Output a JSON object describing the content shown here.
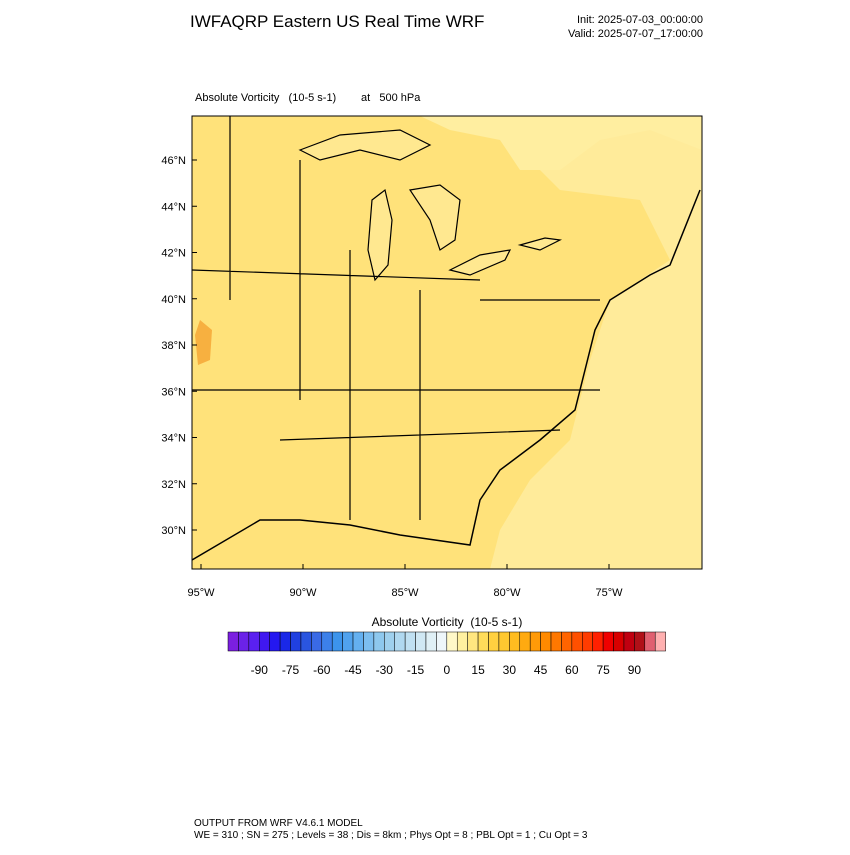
{
  "header": {
    "title": "IWFAQRP Eastern US Real Time WRF",
    "init": "Init: 2025-07-03_00:00:00",
    "valid": "Valid: 2025-07-07_17:00:00"
  },
  "map": {
    "field": "Absolute Vorticity   (10-5 s-1)",
    "level": "at   500 hPa",
    "lat_labels": [
      "46°N",
      "44°N",
      "42°N",
      "40°N",
      "38°N",
      "36°N",
      "34°N",
      "32°N",
      "30°N"
    ],
    "lon_labels": [
      "95°W",
      "90°W",
      "85°W",
      "80°W",
      "75°W"
    ]
  },
  "colorbar": {
    "title": "Absolute Vorticity  (10-5 s-1)",
    "labels": [
      -90,
      -75,
      -60,
      -45,
      -30,
      -15,
      0,
      15,
      30,
      45,
      60,
      75,
      90
    ],
    "colors": [
      "#7b1fe0",
      "#6b22e8",
      "#5a20f0",
      "#4018f0",
      "#2418f0",
      "#1a28e8",
      "#2040e0",
      "#2a55e0",
      "#3a6ae6",
      "#3c80ea",
      "#3c94ec",
      "#50a2ee",
      "#64b0f0",
      "#7cbef0",
      "#8ec8ee",
      "#9fd0ee",
      "#b0d8f0",
      "#c0e0f2",
      "#d0e8f4",
      "#e0f0f6",
      "#eef6fa",
      "#fff8c8",
      "#fff0a0",
      "#ffe680",
      "#ffdc5a",
      "#ffd040",
      "#ffc830",
      "#ffbc20",
      "#ffaa10",
      "#ff9a08",
      "#ff8a00",
      "#ff7800",
      "#ff6400",
      "#ff5000",
      "#ff3c00",
      "#ff2000",
      "#f00000",
      "#d80000",
      "#c00010",
      "#b01018",
      "#e06070",
      "#ffb0b0"
    ]
  },
  "footer": {
    "line1": "OUTPUT FROM WRF V4.6.1 MODEL",
    "line2": "WE = 310 ; SN = 275 ; Levels = 38 ; Dis = 8km ; Phys Opt = 8 ; PBL Opt = 1 ; Cu Opt = 3"
  }
}
